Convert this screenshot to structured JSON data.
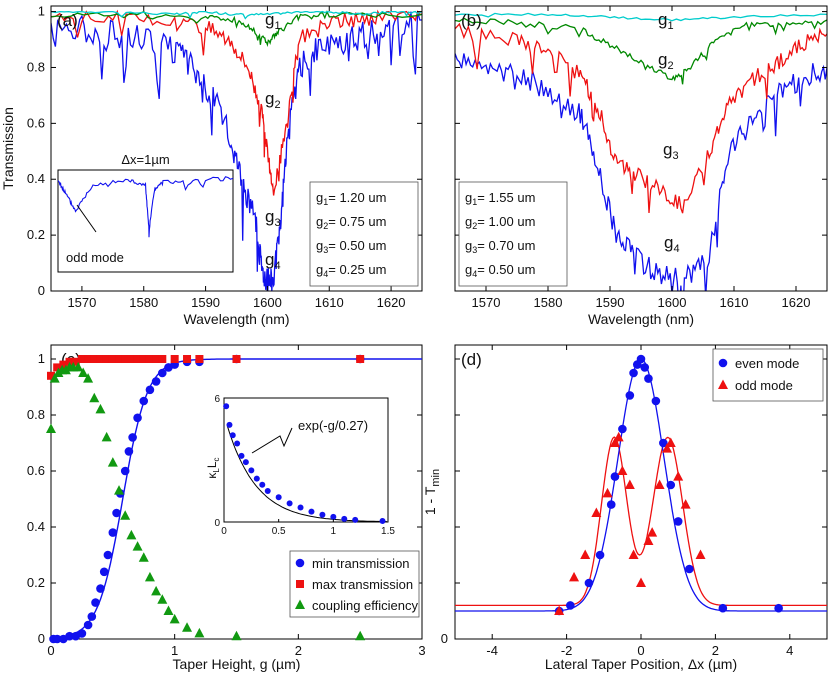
{
  "chart_data": [
    {
      "panel": "(a)",
      "type": "line",
      "xlabel": "Wavelength (nm)",
      "ylabel": "Transmission",
      "xlim": [
        1565,
        1625
      ],
      "ylim": [
        0,
        1.02
      ],
      "xticks": [
        1570,
        1580,
        1590,
        1600,
        1610,
        1620
      ],
      "yticks": [
        0,
        0.2,
        0.4,
        0.6,
        0.8,
        1
      ],
      "series": [
        {
          "name": "g1",
          "label": "g1",
          "color": "#00cccc",
          "x": [
            1565,
            1575,
            1585,
            1590,
            1595,
            1600,
            1605,
            1610,
            1615,
            1620,
            1625
          ],
          "y": [
            1.0,
            1.0,
            0.99,
            1.0,
            0.99,
            0.99,
            1.0,
            1.0,
            0.99,
            1.0,
            1.0
          ]
        },
        {
          "name": "g2",
          "label": "g2",
          "color": "#008800",
          "x": [
            1565,
            1580,
            1590,
            1595,
            1598,
            1600,
            1602,
            1605,
            1610,
            1625
          ],
          "y": [
            0.99,
            0.99,
            0.98,
            0.97,
            0.93,
            0.89,
            0.93,
            0.98,
            0.99,
            0.99
          ]
        },
        {
          "name": "g3",
          "label": "g3",
          "color": "#ee1111",
          "x": [
            1565,
            1575,
            1585,
            1590,
            1594,
            1597,
            1599,
            1600,
            1601,
            1603,
            1605,
            1610,
            1615,
            1620,
            1625
          ],
          "y": [
            0.99,
            0.98,
            0.96,
            0.95,
            0.9,
            0.8,
            0.65,
            0.5,
            0.35,
            0.58,
            0.9,
            0.96,
            0.97,
            0.99,
            0.99
          ]
        },
        {
          "name": "g4",
          "label": "g4",
          "color": "#1111ee",
          "x": [
            1565,
            1570,
            1575,
            1580,
            1585,
            1588,
            1591,
            1594,
            1596,
            1598,
            1599,
            1600,
            1601,
            1602,
            1603,
            1605,
            1608,
            1612,
            1616,
            1620,
            1625
          ],
          "y": [
            0.95,
            0.94,
            0.92,
            0.9,
            0.86,
            0.8,
            0.7,
            0.55,
            0.4,
            0.25,
            0.1,
            0.03,
            0.05,
            0.2,
            0.5,
            0.8,
            0.86,
            0.88,
            0.92,
            0.95,
            0.97
          ]
        }
      ],
      "curve_labels": [
        "g",
        "g",
        "g",
        "g"
      ],
      "curve_label_subs": [
        "1",
        "2",
        "3",
        "4"
      ],
      "gap_legend": [
        {
          "g": "g",
          "sub": "1",
          "val": "= 1.20 um"
        },
        {
          "g": "g",
          "sub": "2",
          "val": "= 0.75 um"
        },
        {
          "g": "g",
          "sub": "3",
          "val": "= 0.50 um"
        },
        {
          "g": "g",
          "sub": "4",
          "val": "= 0.25 um"
        }
      ],
      "inset": {
        "title": "Δx=1µm",
        "annotation": "odd mode"
      }
    },
    {
      "panel": "(b)",
      "type": "line",
      "xlabel": "Wavelength (nm)",
      "xlim": [
        1565,
        1625
      ],
      "ylim": [
        0,
        1.02
      ],
      "xticks": [
        1570,
        1580,
        1590,
        1600,
        1610,
        1620
      ],
      "series": [
        {
          "name": "g1",
          "label": "g1",
          "color": "#00cccc",
          "x": [
            1565,
            1580,
            1590,
            1600,
            1610,
            1625
          ],
          "y": [
            0.99,
            0.99,
            0.98,
            0.97,
            0.98,
            0.99
          ]
        },
        {
          "name": "g2",
          "label": "g2",
          "color": "#008800",
          "x": [
            1565,
            1575,
            1585,
            1590,
            1595,
            1600,
            1603,
            1607,
            1612,
            1618,
            1625
          ],
          "y": [
            0.97,
            0.96,
            0.94,
            0.88,
            0.82,
            0.76,
            0.8,
            0.9,
            0.95,
            0.96,
            0.97
          ]
        },
        {
          "name": "g3",
          "label": "g3",
          "color": "#ee1111",
          "x": [
            1565,
            1575,
            1580,
            1585,
            1588,
            1591,
            1594,
            1598,
            1602,
            1606,
            1609,
            1613,
            1617,
            1621,
            1625
          ],
          "y": [
            0.93,
            0.9,
            0.86,
            0.78,
            0.66,
            0.46,
            0.42,
            0.36,
            0.3,
            0.5,
            0.66,
            0.76,
            0.82,
            0.88,
            0.92
          ]
        },
        {
          "name": "g4",
          "label": "g4",
          "color": "#1111ee",
          "x": [
            1565,
            1570,
            1575,
            1580,
            1585,
            1588,
            1591,
            1594,
            1598,
            1602,
            1606,
            1609,
            1613,
            1617,
            1621,
            1625
          ],
          "y": [
            0.82,
            0.8,
            0.78,
            0.72,
            0.64,
            0.45,
            0.2,
            0.12,
            0.06,
            0.04,
            0.12,
            0.48,
            0.62,
            0.7,
            0.76,
            0.8
          ]
        }
      ],
      "curve_labels": [
        "g",
        "g",
        "g",
        "g"
      ],
      "curve_label_subs": [
        "1",
        "2",
        "3",
        "4"
      ],
      "gap_legend": [
        {
          "g": "g",
          "sub": "1",
          "val": "= 1.55 um"
        },
        {
          "g": "g",
          "sub": "2",
          "val": "= 1.00 um"
        },
        {
          "g": "g",
          "sub": "3",
          "val": "= 0.70 um"
        },
        {
          "g": "g",
          "sub": "4",
          "val": "= 0.50 um"
        }
      ]
    },
    {
      "panel": "(c)",
      "type": "scatter",
      "xlabel": "Taper Height, g (µm)",
      "xlim": [
        0,
        3
      ],
      "ylim": [
        0,
        1.05
      ],
      "xticks": [
        0,
        1,
        2,
        3
      ],
      "yticks": [
        0,
        0.2,
        0.4,
        0.6,
        0.8,
        1
      ],
      "series": [
        {
          "name": "min transmission",
          "color": "#1111ee",
          "marker": "circle",
          "x": [
            0.02,
            0.05,
            0.1,
            0.15,
            0.2,
            0.25,
            0.3,
            0.33,
            0.36,
            0.4,
            0.43,
            0.46,
            0.5,
            0.53,
            0.56,
            0.6,
            0.63,
            0.66,
            0.7,
            0.75,
            0.8,
            0.85,
            0.9,
            0.95,
            1.0,
            1.1,
            1.2,
            1.5,
            2.5
          ],
          "y": [
            0.0,
            0.0,
            0.0,
            0.01,
            0.01,
            0.02,
            0.05,
            0.08,
            0.13,
            0.18,
            0.24,
            0.3,
            0.38,
            0.45,
            0.52,
            0.6,
            0.67,
            0.72,
            0.79,
            0.85,
            0.89,
            0.92,
            0.95,
            0.97,
            0.98,
            0.99,
            0.99,
            1.0,
            1.0
          ]
        },
        {
          "name": "max transmission",
          "color": "#ee1111",
          "marker": "square",
          "x": [
            0.0,
            0.05,
            0.1,
            0.15,
            0.2,
            0.25,
            0.3,
            0.35,
            0.4,
            0.45,
            0.5,
            0.55,
            0.6,
            0.65,
            0.7,
            0.75,
            0.8,
            0.85,
            0.9,
            1.0,
            1.1,
            1.2,
            1.5,
            2.5
          ],
          "y": [
            0.94,
            0.97,
            0.98,
            0.99,
            0.99,
            1.0,
            1.0,
            1.0,
            1.0,
            1.0,
            1.0,
            1.0,
            1.0,
            1.0,
            1.0,
            1.0,
            1.0,
            1.0,
            1.0,
            1.0,
            1.0,
            1.0,
            1.0,
            1.0
          ]
        },
        {
          "name": "coupling efficiency",
          "color": "#119911",
          "marker": "triangle",
          "x": [
            0.0,
            0.03,
            0.06,
            0.09,
            0.12,
            0.15,
            0.18,
            0.22,
            0.26,
            0.3,
            0.35,
            0.4,
            0.45,
            0.5,
            0.55,
            0.6,
            0.65,
            0.7,
            0.75,
            0.8,
            0.85,
            0.9,
            0.95,
            1.0,
            1.1,
            1.2,
            1.5,
            2.5
          ],
          "y": [
            0.75,
            0.93,
            0.95,
            0.96,
            0.96,
            0.97,
            0.97,
            0.97,
            0.95,
            0.93,
            0.86,
            0.82,
            0.72,
            0.63,
            0.53,
            0.44,
            0.37,
            0.33,
            0.29,
            0.22,
            0.17,
            0.14,
            0.1,
            0.07,
            0.04,
            0.02,
            0.01,
            0.01
          ]
        }
      ],
      "fit_color": "#1111ee",
      "legend_position": "bottom-right",
      "inset": {
        "xlim": [
          0,
          1.5
        ],
        "ylim": [
          0,
          6
        ],
        "xticks": [
          "0",
          "0.5",
          "1",
          "1.5"
        ],
        "yticks": [
          "0",
          "6"
        ],
        "ylabel_base": "κ",
        "ylabel_sub1": "L",
        "ylabel_mid": "L",
        "ylabel_sub2": "c",
        "fit_label": "exp(-g/0.27)",
        "x": [
          0.02,
          0.05,
          0.08,
          0.12,
          0.16,
          0.2,
          0.25,
          0.3,
          0.35,
          0.4,
          0.5,
          0.6,
          0.7,
          0.8,
          0.9,
          1.0,
          1.1,
          1.2,
          1.45
        ],
        "y": [
          5.6,
          4.7,
          4.2,
          3.8,
          3.2,
          2.9,
          2.5,
          2.1,
          1.8,
          1.5,
          1.2,
          0.9,
          0.7,
          0.5,
          0.35,
          0.25,
          0.15,
          0.1,
          0.05
        ]
      }
    },
    {
      "panel": "(d)",
      "type": "scatter",
      "xlabel": "Lateral Taper Position, Δx (µm)",
      "ylabel": "1 - T",
      "ylabel_sub": "min",
      "xlim": [
        -5,
        5
      ],
      "ylim": [
        0,
        1.05
      ],
      "xticks": [
        -4,
        -2,
        0,
        2,
        4
      ],
      "series": [
        {
          "name": "even mode",
          "color": "#1111ee",
          "marker": "circle",
          "x": [
            -2.2,
            -1.9,
            -1.4,
            -1.1,
            -0.8,
            -0.7,
            -0.5,
            -0.3,
            -0.2,
            -0.1,
            0.0,
            0.1,
            0.2,
            0.4,
            0.6,
            0.8,
            1.0,
            1.3,
            2.2,
            3.7
          ],
          "y": [
            0.1,
            0.12,
            0.2,
            0.3,
            0.48,
            0.58,
            0.75,
            0.87,
            0.95,
            0.98,
            1.0,
            0.97,
            0.93,
            0.85,
            0.7,
            0.55,
            0.42,
            0.25,
            0.11,
            0.11
          ]
        },
        {
          "name": "odd mode",
          "color": "#ee1111",
          "marker": "triangle",
          "x": [
            -2.2,
            -1.8,
            -1.5,
            -1.2,
            -0.9,
            -0.7,
            -0.6,
            -0.5,
            -0.3,
            -0.2,
            0.0,
            0.2,
            0.3,
            0.5,
            0.7,
            0.8,
            1.0,
            1.2,
            1.6
          ],
          "y": [
            0.1,
            0.22,
            0.3,
            0.45,
            0.52,
            0.7,
            0.72,
            0.6,
            0.55,
            0.3,
            0.2,
            0.35,
            0.38,
            0.55,
            0.68,
            0.7,
            0.58,
            0.48,
            0.3
          ]
        }
      ],
      "legend_position": "top-right"
    }
  ]
}
